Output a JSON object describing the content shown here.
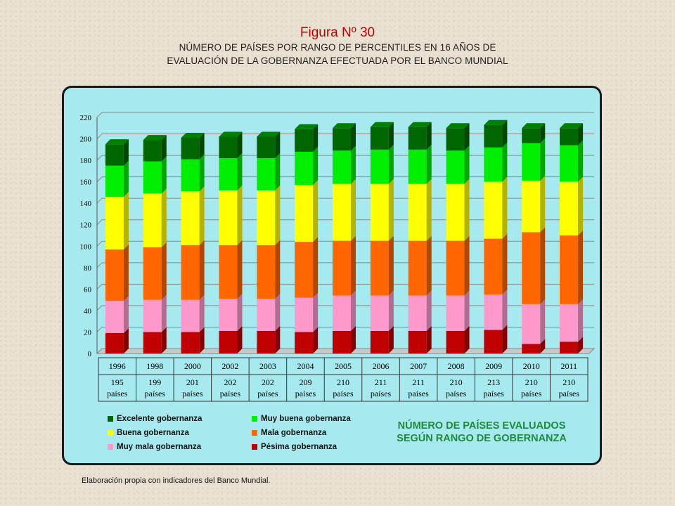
{
  "header": {
    "title": "Figura Nº 30",
    "subtitle_line1": "NÚMERO DE PAÍSES POR RANGO DE PERCENTILES EN 16 AÑOS DE",
    "subtitle_line2": "EVALUACIÓN DE LA GOBERNANZA EFECTUADA POR EL BANCO MUNDIAL"
  },
  "source_note": "Elaboración propia con indicadores del Banco Mundial.",
  "legend_title": "NÚMERO DE PAÍSES EVALUADOS SEGÚN RANGO DE GOBERNANZA",
  "chart_data": {
    "type": "bar",
    "stacked": true,
    "categories": [
      "1996",
      "1998",
      "2000",
      "2002",
      "2003",
      "2004",
      "2005",
      "2006",
      "2007",
      "2008",
      "2009",
      "2010",
      "2011"
    ],
    "category_totals": [
      "195",
      "199",
      "201",
      "202",
      "202",
      "209",
      "210",
      "211",
      "211",
      "210",
      "213",
      "210",
      "210"
    ],
    "total_unit": "países",
    "ylim": [
      0,
      220
    ],
    "yticks": [
      0,
      20,
      40,
      60,
      80,
      100,
      120,
      140,
      160,
      180,
      200,
      220
    ],
    "grid": true,
    "legend_position": "bottom",
    "series": [
      {
        "name": "Pésima gobernanza",
        "color": "#c00000",
        "values": [
          19,
          20,
          20,
          21,
          21,
          20,
          21,
          21,
          21,
          21,
          22,
          9,
          11
        ]
      },
      {
        "name": "Muy mala gobernanza",
        "color": "#ff99cc",
        "values": [
          30,
          30,
          30,
          30,
          30,
          32,
          33,
          33,
          33,
          33,
          33,
          37,
          35
        ]
      },
      {
        "name": "Mala gobernanza",
        "color": "#ff6600",
        "values": [
          48,
          49,
          51,
          50,
          50,
          52,
          51,
          51,
          51,
          51,
          52,
          67,
          64
        ]
      },
      {
        "name": "Buena gobernanza",
        "color": "#ffff00",
        "values": [
          49,
          50,
          50,
          51,
          51,
          53,
          53,
          53,
          53,
          53,
          53,
          48,
          50
        ]
      },
      {
        "name": "Muy buena gobernanza",
        "color": "#00ee00",
        "values": [
          29,
          30,
          30,
          30,
          30,
          31,
          31,
          32,
          32,
          31,
          32,
          35,
          34
        ]
      },
      {
        "name": "Excelente gobernanza",
        "color": "#006600",
        "values": [
          20,
          20,
          20,
          20,
          20,
          21,
          21,
          21,
          21,
          21,
          21,
          14,
          16
        ]
      }
    ],
    "legend_order": [
      "Excelente gobernanza",
      "Muy buena gobernanza",
      "Buena gobernanza",
      "Mala gobernanza",
      "Muy mala gobernanza",
      "Pésima gobernanza"
    ]
  }
}
